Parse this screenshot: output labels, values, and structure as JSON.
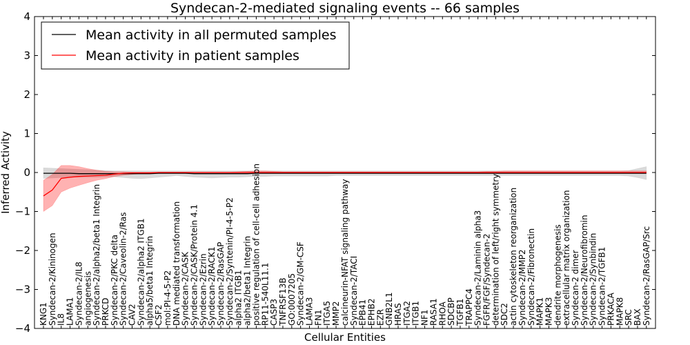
{
  "chart_data": {
    "type": "line",
    "title": "Syndecan-2-mediated signaling events -- 66 samples",
    "xlabel": "Cellular Entities",
    "ylabel": "Inferred Activity",
    "ylim": [
      -4,
      4
    ],
    "yticks": [
      -4,
      -3,
      -2,
      -1,
      0,
      1,
      2,
      3,
      4
    ],
    "ytick_labels": [
      "−4",
      "−3",
      "−2",
      "−1",
      "0",
      "1",
      "2",
      "3",
      "4"
    ],
    "legend_position": "top-left",
    "colors": {
      "permuted": "#000000",
      "patient": "#ff0000",
      "permuted_band": "#bbbbbb",
      "patient_band": "#ff0000"
    },
    "categories": [
      "KNG1",
      "Syndecan-2/Kininogen",
      "IL8",
      "LAMA1",
      "Syndecan-2/IL8",
      "angiogenesis",
      "Syndecan-2/alpha2/beta1 Integrin",
      "PRKCD",
      "Syndecan-2/PKC delta",
      "Syndecan-2/Caveolin-2/Ras",
      "CAV2",
      "Syndecan-2/alpha2 ITGB1",
      "alpha5/beta1 Integrin",
      "CSF2",
      "mol:PI-4-5-P2",
      "DNA mediated transformation",
      "Syndecan-2/CASK",
      "Syndecan-2/CASK/Protein 4.1",
      "Syndecan-2/Ezrin",
      "Syndecan-2/RACK1",
      "Syndecan-2/RasGAP",
      "Syndecan-2/Syntenin/PI-4-5-P2",
      "alpha2 ITGB1",
      "alpha2/beta1 Integrin",
      "positive regulation of cell-cell adhesion",
      "RP11-540L11.1",
      "CASP3",
      "TNFRSF13B",
      "GO:0007205",
      "Syndecan-2/GM-CSF",
      "LAMA3",
      "FN1",
      "ITGA5",
      "MMP2",
      "calcineurin-NFAT signaling pathway",
      "Syndecan-2/TACI",
      "EPB41",
      "EPHB2",
      "EZR",
      "GNB2L1",
      "HRAS",
      "ITGA2",
      "ITGB1",
      "NF1",
      "RASA1",
      "RHOA",
      "SDCBP",
      "TGFB1",
      "TRAPPC4",
      "Syndecan-2/Laminin alpha3",
      "FGFR/FGF/Syndecan-2",
      "determination of left/right symmetry",
      "SDC2",
      "actin cytoskeleton reorganization",
      "Syndecan-2/MMP2",
      "Syndecan-2/Fibronectin",
      "MAPK1",
      "MAPK3",
      "dendrite morphogenesis",
      "extracellular matrix organization",
      "Syndecan-2 dimer",
      "Syndecan-2/Neurofibromin",
      "Syndecan-2/Synbindin",
      "Syndecan-2/TGFB1",
      "PRKACA",
      "MAPK8",
      "SRC",
      "BAX",
      "Syndecan-2/RasGAP/Src"
    ],
    "series": [
      {
        "name": "Mean activity in all permuted samples",
        "color": "#000000",
        "values": [
          -0.02,
          -0.02,
          -0.02,
          -0.02,
          -0.03,
          -0.03,
          -0.03,
          -0.03,
          -0.03,
          -0.03,
          -0.03,
          -0.03,
          -0.03,
          -0.02,
          -0.02,
          -0.02,
          -0.02,
          -0.03,
          -0.03,
          -0.03,
          -0.03,
          -0.03,
          -0.03,
          -0.03,
          -0.02,
          -0.02,
          -0.02,
          -0.02,
          -0.02,
          -0.02,
          -0.02,
          -0.02,
          -0.02,
          -0.02,
          -0.02,
          -0.02,
          -0.02,
          -0.02,
          -0.02,
          -0.02,
          -0.02,
          -0.02,
          -0.02,
          -0.02,
          -0.02,
          -0.02,
          -0.02,
          -0.02,
          -0.02,
          -0.02,
          -0.02,
          -0.02,
          -0.02,
          -0.02,
          -0.02,
          -0.02,
          -0.02,
          -0.02,
          -0.02,
          -0.02,
          -0.02,
          -0.02,
          -0.02,
          -0.02,
          -0.02,
          -0.02,
          -0.02,
          -0.02,
          -0.02
        ],
        "lower": [
          -0.15,
          -0.14,
          -0.13,
          -0.12,
          -0.12,
          -0.12,
          -0.12,
          -0.11,
          -0.11,
          -0.13,
          -0.15,
          -0.16,
          -0.14,
          -0.12,
          -0.1,
          -0.08,
          -0.1,
          -0.12,
          -0.13,
          -0.14,
          -0.13,
          -0.12,
          -0.12,
          -0.11,
          -0.1,
          -0.1,
          -0.09,
          -0.09,
          -0.09,
          -0.09,
          -0.09,
          -0.09,
          -0.09,
          -0.08,
          -0.08,
          -0.08,
          -0.08,
          -0.08,
          -0.08,
          -0.08,
          -0.08,
          -0.08,
          -0.08,
          -0.08,
          -0.08,
          -0.08,
          -0.08,
          -0.08,
          -0.08,
          -0.08,
          -0.08,
          -0.08,
          -0.08,
          -0.08,
          -0.08,
          -0.08,
          -0.08,
          -0.08,
          -0.08,
          -0.08,
          -0.08,
          -0.08,
          -0.08,
          -0.08,
          -0.08,
          -0.08,
          -0.09,
          -0.13,
          -0.18
        ],
        "upper": [
          0.12,
          0.11,
          0.1,
          0.09,
          0.08,
          0.07,
          0.06,
          0.05,
          0.04,
          0.04,
          0.04,
          0.04,
          0.04,
          0.04,
          0.04,
          0.04,
          0.04,
          0.04,
          0.04,
          0.04,
          0.04,
          0.04,
          0.04,
          0.04,
          0.04,
          0.04,
          0.04,
          0.04,
          0.04,
          0.04,
          0.04,
          0.04,
          0.04,
          0.04,
          0.04,
          0.04,
          0.04,
          0.04,
          0.04,
          0.04,
          0.04,
          0.04,
          0.04,
          0.04,
          0.04,
          0.04,
          0.04,
          0.04,
          0.04,
          0.04,
          0.04,
          0.04,
          0.04,
          0.04,
          0.04,
          0.04,
          0.04,
          0.04,
          0.04,
          0.04,
          0.04,
          0.04,
          0.04,
          0.04,
          0.04,
          0.04,
          0.05,
          0.1,
          0.15
        ]
      },
      {
        "name": "Mean activity in patient samples",
        "color": "#ff0000",
        "values": [
          -0.6,
          -0.45,
          -0.15,
          -0.12,
          -0.1,
          -0.09,
          -0.08,
          -0.07,
          -0.04,
          -0.02,
          -0.01,
          -0.01,
          -0.01,
          0.0,
          0.0,
          0.0,
          0.0,
          0.0,
          0.0,
          0.0,
          0.0,
          0.0,
          0.0,
          0.0,
          0.0,
          0.0,
          0.0,
          0.0,
          0.0,
          0.0,
          0.0,
          0.0,
          0.0,
          0.0,
          0.0,
          0.0,
          0.0,
          0.0,
          0.0,
          0.0,
          0.0,
          0.0,
          0.0,
          0.0,
          0.0,
          0.0,
          0.0,
          0.0,
          0.0,
          0.0,
          0.0,
          0.0,
          0.0,
          0.0,
          0.0,
          0.0,
          0.0,
          0.0,
          0.0,
          0.0,
          0.0,
          0.0,
          0.0,
          0.0,
          0.0,
          0.0,
          0.0,
          0.0,
          0.0
        ],
        "lower": [
          -1.0,
          -0.85,
          -0.5,
          -0.4,
          -0.33,
          -0.26,
          -0.2,
          -0.16,
          -0.1,
          -0.07,
          -0.05,
          -0.03,
          -0.02,
          -0.01,
          -0.01,
          -0.01,
          -0.01,
          -0.01,
          -0.01,
          -0.01,
          -0.01,
          -0.01,
          -0.01,
          -0.01,
          -0.01,
          -0.01,
          -0.01,
          -0.01,
          -0.01,
          -0.01,
          -0.01,
          -0.01,
          -0.01,
          -0.01,
          -0.01,
          -0.01,
          -0.01,
          -0.01,
          -0.01,
          -0.01,
          -0.01,
          -0.01,
          -0.01,
          -0.01,
          -0.01,
          -0.01,
          -0.01,
          -0.01,
          -0.01,
          -0.01,
          -0.01,
          -0.01,
          -0.01,
          -0.01,
          -0.01,
          -0.01,
          -0.01,
          -0.01,
          -0.01,
          -0.01,
          -0.01,
          -0.01,
          -0.01,
          -0.01,
          -0.01,
          -0.01,
          -0.01,
          -0.01,
          -0.01
        ],
        "upper": [
          -0.2,
          -0.05,
          0.18,
          0.18,
          0.15,
          0.1,
          0.06,
          0.03,
          0.02,
          0.02,
          0.01,
          0.01,
          0.01,
          0.01,
          0.01,
          0.01,
          0.01,
          0.01,
          0.01,
          0.01,
          0.01,
          0.01,
          0.02,
          0.03,
          0.04,
          0.04,
          0.03,
          0.02,
          0.02,
          0.02,
          0.02,
          0.02,
          0.02,
          0.02,
          0.02,
          0.02,
          0.02,
          0.02,
          0.02,
          0.02,
          0.02,
          0.02,
          0.02,
          0.02,
          0.02,
          0.02,
          0.02,
          0.02,
          0.02,
          0.02,
          0.03,
          0.03,
          0.04,
          0.04,
          0.04,
          0.04,
          0.04,
          0.04,
          0.04,
          0.04,
          0.04,
          0.04,
          0.04,
          0.04,
          0.04,
          0.04,
          0.04,
          0.04,
          0.04
        ]
      }
    ]
  }
}
